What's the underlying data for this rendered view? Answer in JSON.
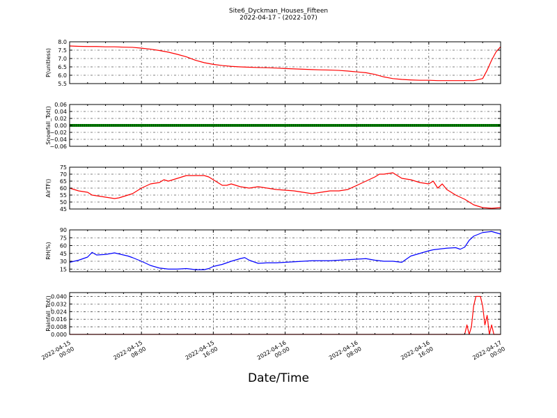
{
  "figure": {
    "title_line1": "Site6_Dyckman_Houses_Fifteen",
    "title_line2": "2022-04-17 - (2022-107)",
    "xlabel": "Date/Time"
  },
  "x_ticks": [
    {
      "line1": "2022-04-15",
      "line2": "00:00",
      "hour": 0
    },
    {
      "line1": "2022-04-15",
      "line2": "08:00",
      "hour": 8
    },
    {
      "line1": "2022-04-15",
      "line2": "16:00",
      "hour": 16
    },
    {
      "line1": "2022-04-16",
      "line2": "00:00",
      "hour": 24
    },
    {
      "line1": "2022-04-16",
      "line2": "08:00",
      "hour": 32
    },
    {
      "line1": "2022-04-16",
      "line2": "16:00",
      "hour": 40
    },
    {
      "line1": "2022-04-17",
      "line2": "00:00",
      "hour": 48
    }
  ],
  "chart_data": [
    {
      "type": "line",
      "ylabel": "P(unitless)",
      "ylim": [
        5.5,
        8.0
      ],
      "yticks": [
        5.5,
        6.0,
        6.5,
        7.0,
        7.5,
        8.0
      ],
      "tick_labels": [
        "5.5",
        "6.0",
        "6.5",
        "7.0",
        "7.5",
        "8.0"
      ],
      "grid": true,
      "color": "#ff0000",
      "series": [
        {
          "x": [
            0,
            1,
            2,
            3,
            4,
            5,
            6,
            7,
            8,
            9,
            10,
            11,
            12,
            13,
            14,
            15,
            16,
            17,
            18,
            19,
            20,
            21,
            22,
            23,
            24,
            25,
            26,
            27,
            28,
            29,
            30,
            31,
            32,
            33,
            34,
            35,
            36,
            37,
            38,
            39,
            40,
            41,
            42,
            43,
            44,
            45,
            46,
            46.5,
            47,
            47.5,
            48
          ],
          "y": [
            7.75,
            7.73,
            7.72,
            7.72,
            7.7,
            7.7,
            7.68,
            7.67,
            7.62,
            7.56,
            7.48,
            7.38,
            7.25,
            7.1,
            6.9,
            6.75,
            6.65,
            6.58,
            6.53,
            6.5,
            6.48,
            6.46,
            6.45,
            6.43,
            6.4,
            6.38,
            6.36,
            6.34,
            6.32,
            6.31,
            6.29,
            6.25,
            6.2,
            6.15,
            6.05,
            5.9,
            5.8,
            5.75,
            5.72,
            5.7,
            5.7,
            5.68,
            5.68,
            5.68,
            5.68,
            5.68,
            5.8,
            6.3,
            6.9,
            7.4,
            7.7
          ]
        }
      ]
    },
    {
      "type": "line",
      "ylabel": "Snowfall_Tot()",
      "ylim": [
        -0.06,
        0.06
      ],
      "yticks": [
        -0.06,
        -0.04,
        -0.02,
        0.0,
        0.02,
        0.04,
        0.06
      ],
      "tick_labels": [
        "−0.06",
        "−0.04",
        "−0.02",
        "0.00",
        "0.02",
        "0.04",
        "0.06"
      ],
      "grid": true,
      "color": "#008000",
      "series": [
        {
          "x": [
            0,
            48
          ],
          "y": [
            0,
            0
          ]
        }
      ]
    },
    {
      "type": "line",
      "ylabel": "AirTF()",
      "ylim": [
        45,
        75
      ],
      "yticks": [
        45,
        50,
        55,
        60,
        65,
        70,
        75
      ],
      "tick_labels": [
        "45",
        "50",
        "55",
        "60",
        "65",
        "70",
        "75"
      ],
      "grid": true,
      "color": "#ff0000",
      "series": [
        {
          "x": [
            0,
            1,
            2,
            2.5,
            3,
            4,
            5,
            5.5,
            6,
            7,
            7.5,
            8,
            9,
            10,
            10.5,
            11,
            12,
            12.5,
            13,
            14,
            15,
            15.5,
            16,
            16.5,
            17,
            17.5,
            18,
            19,
            20,
            21,
            22,
            23,
            24,
            25,
            26,
            27,
            28,
            29,
            30,
            31,
            32,
            33,
            34,
            34.5,
            35,
            36,
            37,
            38,
            39,
            40,
            40.5,
            41,
            41.5,
            42,
            42.5,
            43,
            44,
            45,
            46,
            47,
            48
          ],
          "y": [
            60,
            58,
            57,
            55,
            54.5,
            53.5,
            52.5,
            53,
            54,
            56,
            58,
            60,
            63,
            64,
            66,
            65,
            67,
            68,
            69,
            69,
            69,
            68,
            66,
            64,
            62,
            62,
            63,
            61,
            60,
            61,
            60,
            59,
            58.5,
            58,
            57,
            56,
            57,
            58,
            58,
            59,
            62,
            65,
            68,
            70,
            70,
            71,
            67,
            66,
            64,
            63,
            65,
            60,
            63,
            59,
            57,
            55,
            52,
            48,
            46,
            45.5,
            46
          ]
        }
      ]
    },
    {
      "type": "line",
      "ylabel": "RH(%)",
      "ylim": [
        10,
        90
      ],
      "yticks": [
        15,
        30,
        45,
        60,
        75,
        90
      ],
      "tick_labels": [
        "15",
        "30",
        "45",
        "60",
        "75",
        "90"
      ],
      "grid": true,
      "color": "#0000ff",
      "series": [
        {
          "x": [
            0,
            1,
            2,
            2.5,
            3,
            4,
            5,
            6,
            6.5,
            7,
            8,
            9,
            10,
            11,
            12,
            13,
            14,
            15,
            15.5,
            16,
            17,
            18,
            19,
            19.5,
            20,
            21,
            22,
            23,
            24,
            25,
            26,
            27,
            28,
            29,
            30,
            31,
            32,
            33,
            34,
            35,
            36,
            37,
            38,
            39,
            40,
            40.5,
            41,
            42,
            43,
            43.5,
            44,
            44.5,
            45,
            46,
            47,
            48
          ],
          "y": [
            28,
            32,
            38,
            47,
            42,
            43,
            46,
            42,
            40,
            37,
            30,
            22,
            17,
            15,
            15,
            16,
            14,
            14,
            16,
            20,
            24,
            30,
            35,
            37,
            32,
            26,
            27,
            27,
            28,
            29,
            30,
            31,
            31,
            31,
            32,
            33,
            34,
            35,
            32,
            30,
            30,
            28,
            40,
            45,
            50,
            52,
            53,
            55,
            56,
            53,
            57,
            70,
            78,
            85,
            87,
            82
          ]
        }
      ]
    },
    {
      "type": "line",
      "ylabel": "Rainfall_Tot()",
      "ylim": [
        0,
        0.044
      ],
      "yticks": [
        0.0,
        0.008,
        0.016,
        0.024,
        0.032,
        0.04
      ],
      "tick_labels": [
        "0.000",
        "0.008",
        "0.016",
        "0.024",
        "0.032",
        "0.040"
      ],
      "grid": true,
      "color": "#ff0000",
      "series": [
        {
          "x": [
            0,
            44,
            44.25,
            44.5,
            44.75,
            45,
            45.25,
            45.5,
            45.75,
            46,
            46.25,
            46.5,
            46.75,
            47,
            47.25,
            47.5,
            48
          ],
          "y": [
            0,
            0,
            0.01,
            0,
            0.008,
            0.03,
            0.04,
            0.04,
            0.04,
            0.03,
            0.01,
            0.02,
            0,
            0.01,
            0,
            0,
            0
          ]
        }
      ]
    }
  ]
}
